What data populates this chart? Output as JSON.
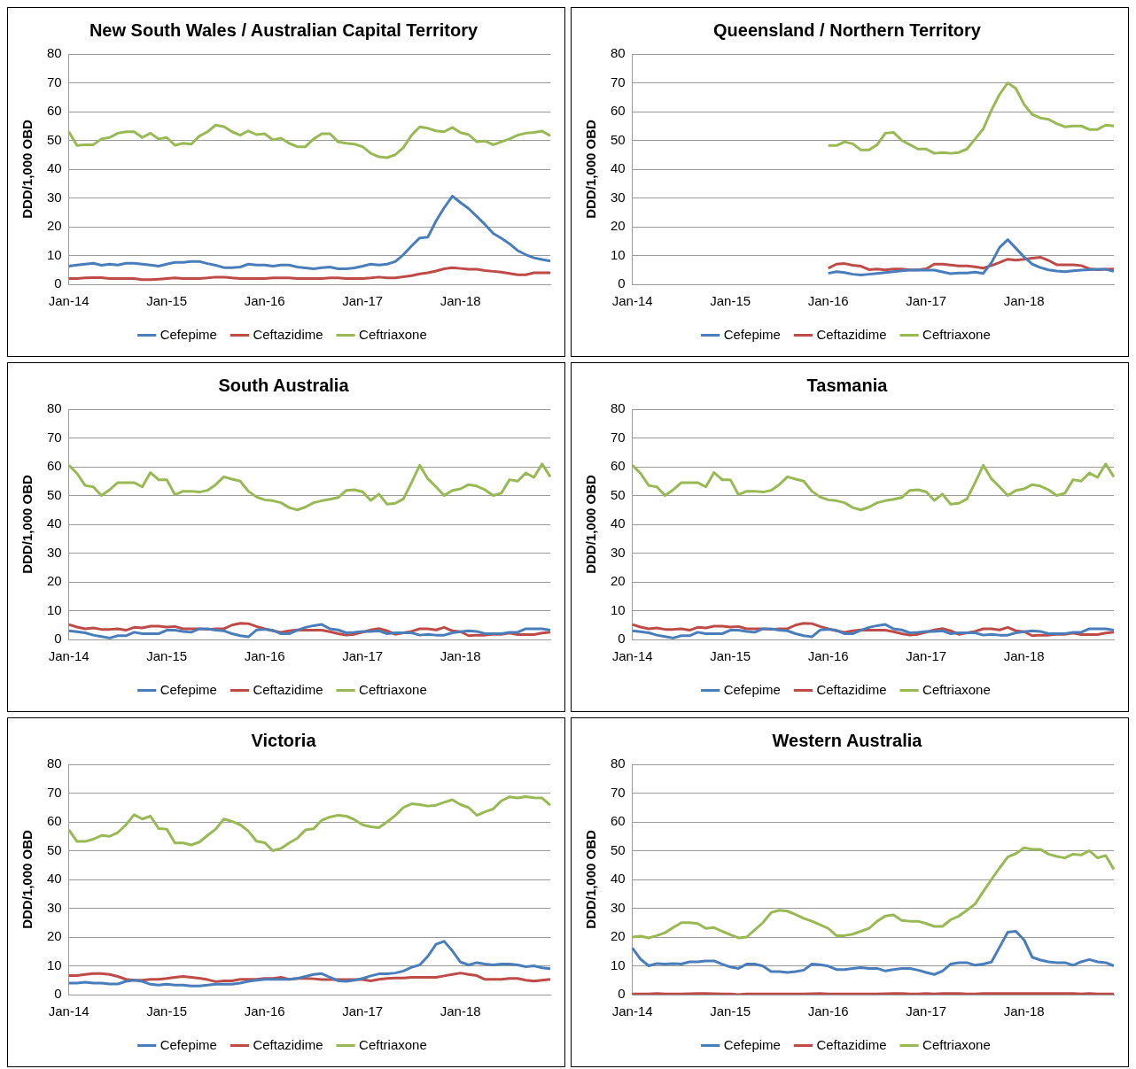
{
  "chart_data": [
    {
      "type": "line",
      "title": "New South Wales / Australian Capital Territory",
      "ylabel": "DDD/1,000 OBD",
      "categories": [
        "Jan-14",
        null,
        null,
        null,
        null,
        null,
        null,
        null,
        null,
        null,
        null,
        null,
        "Jan-15",
        null,
        null,
        null,
        null,
        null,
        null,
        null,
        null,
        null,
        null,
        null,
        "Jan-16",
        null,
        null,
        null,
        null,
        null,
        null,
        null,
        null,
        null,
        null,
        null,
        "Jan-17",
        null,
        null,
        null,
        null,
        null,
        null,
        null,
        null,
        null,
        null,
        null,
        "Jan-18",
        null,
        null,
        null,
        null,
        null,
        null,
        null,
        null,
        null,
        null,
        null
      ],
      "ylim": [
        0,
        80
      ],
      "yticks": [
        0,
        10,
        20,
        30,
        40,
        50,
        60,
        70,
        80
      ],
      "grid": "y",
      "legend": "bottom",
      "series": [
        {
          "name": "Cefepime",
          "color": "#4a7ebb",
          "values": [
            6.3,
            6.7,
            7,
            7.3,
            6.6,
            7,
            6.7,
            7.3,
            7.3,
            7,
            6.7,
            6.3,
            7,
            7.6,
            7.6,
            7.9,
            7.9,
            7.2,
            6.6,
            5.8,
            5.8,
            6,
            7,
            6.7,
            6.7,
            6.3,
            6.7,
            6.7,
            6,
            5.7,
            5.4,
            5.8,
            6,
            5.4,
            5.4,
            5.7,
            6.3,
            7,
            6.7,
            7,
            7.9,
            10.3,
            13.3,
            16.1,
            16.4,
            22,
            26.6,
            30.6,
            28.4,
            26.3,
            23.6,
            20.8,
            17.7,
            16,
            14.1,
            11.7,
            10.3,
            9.2,
            8.6,
            8.1
          ]
        },
        {
          "name": "Ceftazidime",
          "color": "#be4b48",
          "values": [
            2,
            2,
            2.2,
            2.3,
            2.3,
            2,
            2,
            2,
            2,
            1.6,
            1.6,
            1.8,
            2,
            2.2,
            2,
            2,
            2,
            2.2,
            2.5,
            2.5,
            2.2,
            2,
            2,
            2,
            2,
            2.2,
            2.2,
            2.2,
            2,
            2,
            2,
            2,
            2.2,
            2.2,
            2,
            2,
            2,
            2.2,
            2.5,
            2.2,
            2.2,
            2.6,
            3,
            3.6,
            4,
            4.6,
            5.4,
            5.8,
            5.5,
            5.2,
            5.2,
            4.8,
            4.5,
            4.2,
            3.8,
            3.3,
            3.3,
            4,
            4,
            4
          ]
        },
        {
          "name": "Ceftriaxone",
          "color": "#98b954",
          "values": [
            53,
            48.2,
            48.5,
            48.5,
            50.5,
            51,
            52.5,
            53,
            53,
            51,
            52.5,
            50.5,
            51,
            48.3,
            49,
            48.7,
            51.5,
            53,
            55.3,
            54.8,
            53,
            51.8,
            53.3,
            52,
            52.3,
            50.2,
            50.8,
            49,
            47.8,
            47.8,
            50.5,
            52.3,
            52.3,
            49.5,
            49,
            48.7,
            47.8,
            45.5,
            44.3,
            44,
            45,
            47.5,
            51.8,
            54.7,
            54.2,
            53.3,
            53,
            54.5,
            52.7,
            52,
            49.5,
            49.8,
            48.5,
            49.5,
            50.5,
            51.8,
            52.5,
            52.8,
            53.2,
            51.6
          ]
        }
      ]
    },
    {
      "type": "line",
      "title": "Queensland / Northern Territory",
      "ylabel": "DDD/1,000 OBD",
      "categories": [
        "Jan-14",
        null,
        null,
        null,
        null,
        null,
        null,
        null,
        null,
        null,
        null,
        null,
        "Jan-15",
        null,
        null,
        null,
        null,
        null,
        null,
        null,
        null,
        null,
        null,
        null,
        "Jan-16",
        null,
        null,
        null,
        null,
        null,
        null,
        null,
        null,
        null,
        null,
        null,
        "Jan-17",
        null,
        null,
        null,
        null,
        null,
        null,
        null,
        null,
        null,
        null,
        null,
        "Jan-18",
        null,
        null,
        null,
        null,
        null,
        null,
        null,
        null,
        null,
        null,
        null
      ],
      "ylim": [
        0,
        80
      ],
      "yticks": [
        0,
        10,
        20,
        30,
        40,
        50,
        60,
        70,
        80
      ],
      "grid": "y",
      "legend": "bottom",
      "series": [
        {
          "name": "Cefepime",
          "color": "#4a7ebb",
          "values": [
            null,
            null,
            null,
            null,
            null,
            null,
            null,
            null,
            null,
            null,
            null,
            null,
            null,
            null,
            null,
            null,
            null,
            null,
            null,
            null,
            null,
            null,
            null,
            null,
            3.8,
            4.4,
            4.1,
            3.5,
            3.2,
            3.5,
            3.8,
            4.1,
            4.4,
            4.7,
            4.9,
            5,
            4.9,
            4.9,
            4.3,
            3.7,
            3.9,
            3.9,
            4.2,
            3.8,
            7.5,
            12.8,
            15.5,
            12.5,
            9.5,
            7,
            5.8,
            5,
            4.6,
            4.4,
            4.7,
            4.9,
            5.1,
            5.2,
            5.2,
            4.5
          ]
        },
        {
          "name": "Ceftazidime",
          "color": "#be4b48",
          "values": [
            null,
            null,
            null,
            null,
            null,
            null,
            null,
            null,
            null,
            null,
            null,
            null,
            null,
            null,
            null,
            null,
            null,
            null,
            null,
            null,
            null,
            null,
            null,
            null,
            5.6,
            7,
            7.2,
            6.6,
            6.3,
            5.1,
            5.3,
            5,
            5.3,
            5.3,
            5,
            5,
            5.4,
            7,
            7,
            6.7,
            6.4,
            6.4,
            6.1,
            5.6,
            6.5,
            7.6,
            8.7,
            8.4,
            8.7,
            9.1,
            9.4,
            8.3,
            6.8,
            6.8,
            6.8,
            6.5,
            5.4,
            5.1,
            5.2,
            5.3
          ]
        },
        {
          "name": "Ceftriaxone",
          "color": "#98b954",
          "values": [
            null,
            null,
            null,
            null,
            null,
            null,
            null,
            null,
            null,
            null,
            null,
            null,
            null,
            null,
            null,
            null,
            null,
            null,
            null,
            null,
            null,
            null,
            null,
            null,
            48.2,
            48.2,
            49.5,
            48.8,
            46.7,
            46.7,
            48.5,
            52.5,
            52.8,
            50,
            48.5,
            47,
            47,
            45.5,
            45.8,
            45.5,
            45.8,
            47,
            50.5,
            54,
            60.5,
            66,
            70,
            68,
            62.5,
            59,
            57.8,
            57.3,
            55.8,
            54.7,
            55,
            55,
            53.8,
            53.8,
            55.3,
            55
          ]
        }
      ]
    },
    {
      "type": "line",
      "title": "South Australia",
      "ylabel": "DDD/1,000 OBD",
      "categories": [
        "Jan-14",
        null,
        null,
        null,
        null,
        null,
        null,
        null,
        null,
        null,
        null,
        null,
        "Jan-15",
        null,
        null,
        null,
        null,
        null,
        null,
        null,
        null,
        null,
        null,
        null,
        "Jan-16",
        null,
        null,
        null,
        null,
        null,
        null,
        null,
        null,
        null,
        null,
        null,
        "Jan-17",
        null,
        null,
        null,
        null,
        null,
        null,
        null,
        null,
        null,
        null,
        null,
        "Jan-18",
        null,
        null,
        null,
        null,
        null,
        null,
        null,
        null,
        null,
        null,
        null
      ],
      "ylim": [
        0,
        80
      ],
      "yticks": [
        0,
        10,
        20,
        30,
        40,
        50,
        60,
        70,
        80
      ],
      "grid": "y",
      "legend": "bottom",
      "series": [
        {
          "name": "Cefepime",
          "color": "#4a7ebb",
          "values": [
            3,
            2.7,
            2.3,
            1.5,
            1,
            0.5,
            1.3,
            1.3,
            2.5,
            2,
            2,
            2,
            3.2,
            3.2,
            2.8,
            2.5,
            3.7,
            3.7,
            3.2,
            3,
            2,
            1.3,
            0.9,
            3.3,
            3.5,
            3.2,
            2,
            2,
            3.2,
            4.2,
            4.8,
            5.2,
            3.7,
            3.3,
            2.3,
            2.5,
            2.8,
            2.8,
            3,
            2,
            2.3,
            2.3,
            2.3,
            1.5,
            1.8,
            1.5,
            1.5,
            2.3,
            2.7,
            3,
            2.8,
            2,
            2,
            2,
            2.5,
            2.5,
            3.7,
            3.7,
            3.7,
            3.2
          ]
        },
        {
          "name": "Ceftazidime",
          "color": "#be4b48",
          "values": [
            5.2,
            4.3,
            3.7,
            4,
            3.5,
            3.5,
            3.7,
            3.2,
            4.2,
            4,
            4.6,
            4.6,
            4.3,
            4.5,
            3.7,
            3.7,
            3.7,
            3.5,
            3.7,
            3.7,
            5,
            5.6,
            5.5,
            4.5,
            3.7,
            3,
            2.5,
            3,
            3.3,
            3.2,
            3.2,
            3.2,
            2.7,
            2,
            1.5,
            1.8,
            2.5,
            3.3,
            3.8,
            3,
            1.8,
            2.3,
            2.8,
            3.7,
            3.7,
            3.3,
            4.2,
            3,
            2.7,
            1.3,
            1.5,
            1.5,
            1.8,
            1.8,
            2.2,
            1.7,
            1.7,
            1.7,
            2.2,
            2.5
          ]
        },
        {
          "name": "Ceftriaxone",
          "color": "#98b954",
          "values": [
            60.5,
            57.7,
            53.5,
            53,
            50,
            52,
            54.5,
            54.5,
            54.5,
            53,
            58,
            55.5,
            55.5,
            50.3,
            51.5,
            51.5,
            51.2,
            51.8,
            53.8,
            56.5,
            55.7,
            55,
            51.5,
            49.5,
            48.5,
            48.2,
            47.5,
            45.8,
            45,
            46,
            47.5,
            48.2,
            48.7,
            49.3,
            51.8,
            52,
            51.3,
            48.3,
            50.5,
            47,
            47.3,
            48.8,
            54.5,
            60.5,
            55.8,
            53,
            50,
            51.8,
            52.3,
            53.8,
            53.3,
            52,
            50,
            50.8,
            55.5,
            55,
            57.8,
            56.3,
            61,
            56.5
          ]
        }
      ]
    },
    {
      "type": "line",
      "title": "Tasmania",
      "ylabel": "DDD/1,000 OBD",
      "categories": [
        "Jan-14",
        null,
        null,
        null,
        null,
        null,
        null,
        null,
        null,
        null,
        null,
        null,
        "Jan-15",
        null,
        null,
        null,
        null,
        null,
        null,
        null,
        null,
        null,
        null,
        null,
        "Jan-16",
        null,
        null,
        null,
        null,
        null,
        null,
        null,
        null,
        null,
        null,
        null,
        "Jan-17",
        null,
        null,
        null,
        null,
        null,
        null,
        null,
        null,
        null,
        null,
        null,
        "Jan-18",
        null,
        null,
        null,
        null,
        null,
        null,
        null,
        null,
        null,
        null,
        null
      ],
      "ylim": [
        0,
        80
      ],
      "yticks": [
        0,
        10,
        20,
        30,
        40,
        50,
        60,
        70,
        80
      ],
      "grid": "y",
      "legend": "bottom",
      "series": [
        {
          "name": "Cefepime",
          "color": "#4a7ebb",
          "values": [
            3,
            2.7,
            2.3,
            1.5,
            1,
            0.5,
            1.3,
            1.3,
            2.5,
            2,
            2,
            2,
            3.2,
            3.2,
            2.8,
            2.5,
            3.7,
            3.7,
            3.2,
            3,
            2,
            1.3,
            0.9,
            3.3,
            3.5,
            3.2,
            2,
            2,
            3.2,
            4.2,
            4.8,
            5.2,
            3.7,
            3.3,
            2.3,
            2.5,
            2.8,
            2.8,
            3,
            2,
            2.3,
            2.3,
            2.3,
            1.5,
            1.8,
            1.5,
            1.5,
            2.3,
            2.7,
            3,
            2.8,
            2,
            2,
            2,
            2.5,
            2.5,
            3.7,
            3.7,
            3.7,
            3.2
          ]
        },
        {
          "name": "Ceftazidime",
          "color": "#be4b48",
          "values": [
            5.2,
            4.3,
            3.7,
            4,
            3.5,
            3.5,
            3.7,
            3.2,
            4.2,
            4,
            4.6,
            4.6,
            4.3,
            4.5,
            3.7,
            3.7,
            3.7,
            3.5,
            3.7,
            3.7,
            5,
            5.6,
            5.5,
            4.5,
            3.7,
            3,
            2.5,
            3,
            3.3,
            3.2,
            3.2,
            3.2,
            2.7,
            2,
            1.5,
            1.8,
            2.5,
            3.3,
            3.8,
            3,
            1.8,
            2.3,
            2.8,
            3.7,
            3.7,
            3.3,
            4.2,
            3,
            2.7,
            1.3,
            1.5,
            1.5,
            1.8,
            1.8,
            2.2,
            1.7,
            1.7,
            1.7,
            2.2,
            2.5
          ]
        },
        {
          "name": "Ceftriaxone",
          "color": "#98b954",
          "values": [
            60.5,
            57.7,
            53.5,
            53,
            50,
            52,
            54.5,
            54.5,
            54.5,
            53,
            58,
            55.5,
            55.5,
            50.3,
            51.5,
            51.5,
            51.2,
            51.8,
            53.8,
            56.5,
            55.7,
            55,
            51.5,
            49.5,
            48.5,
            48.2,
            47.5,
            45.8,
            45,
            46,
            47.5,
            48.2,
            48.7,
            49.3,
            51.8,
            52,
            51.3,
            48.3,
            50.5,
            47,
            47.3,
            48.8,
            54.5,
            60.5,
            55.8,
            53,
            50,
            51.8,
            52.3,
            53.8,
            53.3,
            52,
            50,
            50.8,
            55.5,
            55,
            57.8,
            56.3,
            61,
            56.5
          ]
        }
      ]
    },
    {
      "type": "line",
      "title": "Victoria",
      "ylabel": "DDD/1,000 OBD",
      "categories": [
        "Jan-14",
        null,
        null,
        null,
        null,
        null,
        null,
        null,
        null,
        null,
        null,
        null,
        "Jan-15",
        null,
        null,
        null,
        null,
        null,
        null,
        null,
        null,
        null,
        null,
        null,
        "Jan-16",
        null,
        null,
        null,
        null,
        null,
        null,
        null,
        null,
        null,
        null,
        null,
        "Jan-17",
        null,
        null,
        null,
        null,
        null,
        null,
        null,
        null,
        null,
        null,
        null,
        "Jan-18",
        null,
        null,
        null,
        null,
        null,
        null,
        null,
        null,
        null,
        null,
        null
      ],
      "ylim": [
        0,
        80
      ],
      "yticks": [
        0,
        10,
        20,
        30,
        40,
        50,
        60,
        70,
        80
      ],
      "grid": "y",
      "legend": "bottom",
      "series": [
        {
          "name": "Cefepime",
          "color": "#4a7ebb",
          "values": [
            4,
            4,
            4.3,
            4,
            4,
            3.7,
            3.7,
            4.6,
            5,
            4.6,
            3.6,
            3.3,
            3.6,
            3.3,
            3.3,
            3,
            3,
            3.3,
            3.6,
            3.6,
            3.6,
            4,
            4.6,
            5,
            5.3,
            5.3,
            5.3,
            5.3,
            5.6,
            6.3,
            7,
            7.3,
            6,
            4.8,
            4.6,
            5,
            5.6,
            6.5,
            7.2,
            7.2,
            7.5,
            8.2,
            9.5,
            10.3,
            13.3,
            17.5,
            18.5,
            15.2,
            11.3,
            10.3,
            11.1,
            10.6,
            10.3,
            10.6,
            10.6,
            10.3,
            9.7,
            10,
            9.3,
            9
          ]
        },
        {
          "name": "Ceftazidime",
          "color": "#be4b48",
          "values": [
            6.6,
            6.6,
            7,
            7.3,
            7.3,
            7,
            6.3,
            5.3,
            5,
            5,
            5.3,
            5.3,
            5.6,
            6,
            6.3,
            6,
            5.7,
            5.2,
            4.5,
            4.8,
            4.8,
            5.3,
            5.3,
            5.3,
            5.6,
            5.6,
            6,
            5.3,
            5.6,
            5.6,
            5.5,
            5.2,
            5.2,
            5.2,
            5.2,
            5.2,
            5.2,
            4.8,
            5.3,
            5.6,
            5.8,
            5.8,
            6,
            6,
            6,
            6,
            6.5,
            7,
            7.5,
            7,
            6.6,
            5.3,
            5.3,
            5.3,
            5.6,
            5.6,
            5,
            4.7,
            5,
            5.3
          ]
        },
        {
          "name": "Ceftriaxone",
          "color": "#98b954",
          "values": [
            57.3,
            53.2,
            53.2,
            54,
            55.3,
            55,
            56.3,
            59,
            62.5,
            61,
            62,
            57.7,
            57.5,
            52.7,
            52.7,
            52,
            53,
            55.3,
            57.5,
            61,
            60.2,
            59,
            56.8,
            53.3,
            52.8,
            50,
            50.8,
            52.7,
            54.3,
            57.2,
            57.6,
            60.6,
            61.7,
            62.3,
            62,
            60.8,
            59,
            58.3,
            58,
            60,
            62.2,
            65,
            66.3,
            66,
            65.5,
            65.8,
            66.8,
            67.7,
            66,
            65,
            62.3,
            63.5,
            64.5,
            67.3,
            68.7,
            68.3,
            68.8,
            68.4,
            68.3,
            65.8
          ]
        }
      ]
    },
    {
      "type": "line",
      "title": "Western Australia",
      "ylabel": "DDD/1,000 OBD",
      "categories": [
        "Jan-14",
        null,
        null,
        null,
        null,
        null,
        null,
        null,
        null,
        null,
        null,
        null,
        "Jan-15",
        null,
        null,
        null,
        null,
        null,
        null,
        null,
        null,
        null,
        null,
        null,
        "Jan-16",
        null,
        null,
        null,
        null,
        null,
        null,
        null,
        null,
        null,
        null,
        null,
        "Jan-17",
        null,
        null,
        null,
        null,
        null,
        null,
        null,
        null,
        null,
        null,
        null,
        "Jan-18",
        null,
        null,
        null,
        null,
        null,
        null,
        null,
        null,
        null,
        null,
        null
      ],
      "ylim": [
        0,
        80
      ],
      "yticks": [
        0,
        10,
        20,
        30,
        40,
        50,
        60,
        70,
        80
      ],
      "grid": "y",
      "legend": "bottom",
      "series": [
        {
          "name": "Cefepime",
          "color": "#4a7ebb",
          "values": [
            16.2,
            12.3,
            10,
            10.8,
            10.6,
            10.8,
            10.6,
            11.4,
            11.4,
            11.7,
            11.7,
            10.6,
            9.6,
            9.1,
            10.6,
            10.6,
            9.9,
            8,
            8,
            7.7,
            8,
            8.5,
            10.6,
            10.4,
            9.9,
            8.7,
            8.7,
            9.1,
            9.4,
            9.1,
            9.1,
            8.2,
            8.7,
            9.1,
            9.1,
            8.5,
            7.7,
            7,
            8.2,
            10.6,
            11.1,
            11.1,
            10.2,
            10.6,
            11.3,
            16.5,
            21.7,
            22,
            19,
            13,
            12,
            11.4,
            11.1,
            11.1,
            10.2,
            11.4,
            12.2,
            11.4,
            11.1,
            10
          ]
        },
        {
          "name": "Ceftazidime",
          "color": "#be4b48",
          "values": [
            0.2,
            0.2,
            0.2,
            0.4,
            0.2,
            0.2,
            0.2,
            0.3,
            0.4,
            0.4,
            0.3,
            0.2,
            0.2,
            0,
            0.2,
            0.2,
            0.2,
            0.2,
            0.2,
            0.2,
            0.2,
            0.2,
            0.3,
            0.4,
            0.2,
            0.2,
            0.2,
            0.2,
            0.2,
            0.2,
            0.2,
            0.3,
            0.4,
            0.4,
            0.2,
            0.2,
            0.4,
            0.2,
            0.4,
            0.4,
            0.4,
            0.2,
            0.2,
            0.4,
            0.4,
            0.4,
            0.4,
            0.4,
            0.4,
            0.4,
            0.4,
            0.4,
            0.4,
            0.4,
            0.4,
            0.2,
            0.4,
            0.2,
            0.2,
            0.2
          ]
        },
        {
          "name": "Ceftriaxone",
          "color": "#98b954",
          "values": [
            20,
            20.3,
            19.7,
            20.5,
            21.5,
            23.3,
            25,
            25,
            24.7,
            23,
            23.3,
            22,
            20.8,
            19.7,
            20,
            22.5,
            25,
            28.5,
            29.3,
            29,
            27.8,
            26.5,
            25.5,
            24.3,
            23,
            20.5,
            20.5,
            21,
            22,
            23,
            25.5,
            27.3,
            27.7,
            25.8,
            25.5,
            25.5,
            24.7,
            23.7,
            23.7,
            26,
            27.3,
            29.3,
            31.5,
            35.8,
            40,
            44,
            47.8,
            49,
            51,
            50.5,
            50.5,
            48.8,
            48,
            47.5,
            48.8,
            48.5,
            50,
            47.5,
            48.3,
            43.5
          ]
        }
      ]
    }
  ]
}
